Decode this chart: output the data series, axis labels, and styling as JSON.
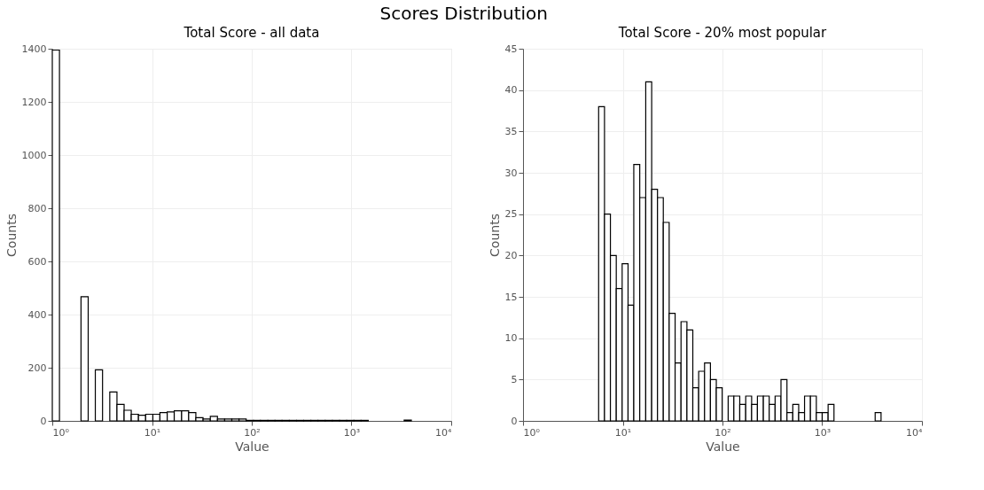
{
  "chart_data": [
    {
      "type": "histogram",
      "title": "Total Score - all data",
      "xlabel": "Value",
      "ylabel": "Counts",
      "annotations": [
        "Scores Distribution"
      ],
      "color": "#ffffff",
      "log": "x",
      "grid": true,
      "bins": [
        1,
        1.18,
        1.39,
        1.64,
        1.94,
        2.29,
        2.7,
        3.19,
        3.77,
        4.45,
        5.25,
        6.19,
        7.31,
        8.63,
        10.2,
        12.0,
        14.2,
        16.7,
        19.8,
        23.3,
        27.5,
        32.5,
        38.4,
        45.3,
        53.5,
        63.1,
        74.5,
        87.9,
        104,
        122,
        145,
        171,
        201,
        238,
        281,
        331,
        391,
        461,
        545,
        643,
        759,
        895,
        1057,
        1247,
        1472,
        1738,
        2051,
        2421,
        2858,
        3373,
        3981
      ],
      "values": [
        1395,
        0,
        0,
        0,
        467,
        0,
        192,
        0,
        109,
        62,
        40,
        25,
        21,
        25,
        25,
        31,
        34,
        38,
        38,
        31,
        12,
        7,
        17,
        7,
        7,
        7,
        7,
        2,
        2,
        2,
        2,
        2,
        2,
        2,
        2,
        2,
        2,
        2,
        2,
        2,
        2,
        2,
        2,
        2,
        0,
        0,
        0,
        0,
        0,
        3
      ],
      "xlim": [
        1,
        10000
      ],
      "xticks": [
        {
          "value": 1,
          "label": "10⁰"
        },
        {
          "value": 10,
          "label": "10¹"
        },
        {
          "value": 100,
          "label": "10²"
        },
        {
          "value": 1000,
          "label": "10³"
        },
        {
          "value": 10000,
          "label": "10⁴"
        }
      ],
      "ylim": [
        0,
        1400
      ],
      "yticks": [
        0,
        200,
        400,
        600,
        800,
        1000,
        1200,
        1400
      ]
    },
    {
      "type": "histogram",
      "title": "Total Score - 20% most popular",
      "xlabel": "Value",
      "ylabel": "Counts",
      "color": "#ffffff",
      "log": "x",
      "grid": true,
      "bins": [
        5.73,
        6.56,
        7.52,
        8.61,
        9.86,
        11.3,
        12.9,
        14.8,
        17.0,
        19.5,
        22.3,
        25.5,
        29.2,
        33.5,
        38.4,
        44.0,
        50.4,
        57.7,
        66.1,
        75.7,
        86.7,
        99.3,
        114,
        130,
        149,
        171,
        196,
        224,
        257,
        294,
        337,
        386,
        443,
        507,
        581,
        665,
        762,
        873,
        1000,
        1146,
        1312,
        1503,
        1722,
        1972,
        2259,
        2588,
        2965,
        3396,
        3890
      ],
      "values": [
        38,
        25,
        20,
        16,
        19,
        14,
        31,
        27,
        41,
        28,
        27,
        24,
        13,
        7,
        12,
        11,
        4,
        6,
        7,
        5,
        4,
        0,
        3,
        3,
        2,
        3,
        2,
        3,
        3,
        2,
        3,
        5,
        1,
        2,
        1,
        3,
        3,
        1,
        1,
        2,
        0,
        0,
        0,
        0,
        0,
        0,
        0,
        1
      ],
      "xlim": [
        1,
        10000
      ],
      "xticks": [
        {
          "value": 1,
          "label": "10⁰"
        },
        {
          "value": 10,
          "label": "10¹"
        },
        {
          "value": 100,
          "label": "10²"
        },
        {
          "value": 1000,
          "label": "10³"
        },
        {
          "value": 10000,
          "label": "10⁴"
        }
      ],
      "ylim": [
        0,
        45
      ],
      "yticks": [
        0,
        5,
        10,
        15,
        20,
        25,
        30,
        35,
        40,
        45
      ]
    }
  ]
}
